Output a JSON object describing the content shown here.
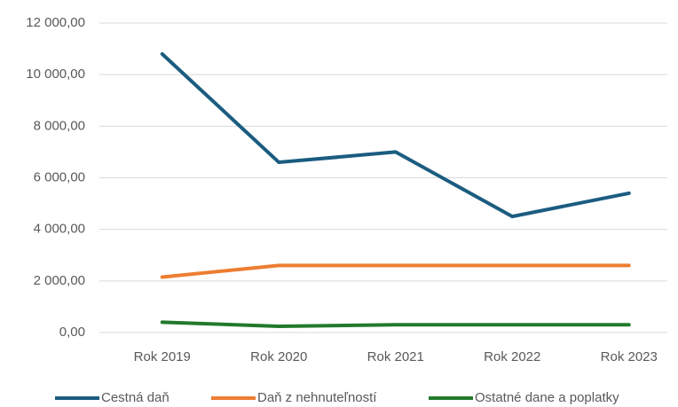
{
  "chart_data": {
    "type": "line",
    "categories": [
      "Rok 2019",
      "Rok 2020",
      "Rok 2021",
      "Rok 2022",
      "Rok 2023"
    ],
    "series": [
      {
        "name": "Cestná daň",
        "color": "#1b5c80",
        "values": [
          10800,
          6600,
          7000,
          4500,
          5400
        ]
      },
      {
        "name": "Daň z nehnuteľností",
        "color": "#ed7d31",
        "values": [
          2150,
          2600,
          2600,
          2600,
          2600
        ]
      },
      {
        "name": "Ostatné dane a poplatky",
        "color": "#217a2b",
        "values": [
          400,
          240,
          300,
          300,
          300
        ]
      }
    ],
    "ylim": [
      0,
      12000
    ],
    "yticks": [
      {
        "value": 0,
        "label": "0,00"
      },
      {
        "value": 2000,
        "label": "2 000,00"
      },
      {
        "value": 4000,
        "label": "4 000,00"
      },
      {
        "value": 6000,
        "label": "6 000,00"
      },
      {
        "value": 8000,
        "label": "8 000,00"
      },
      {
        "value": 10000,
        "label": "10 000,00"
      },
      {
        "value": 12000,
        "label": "12 000,00"
      }
    ],
    "grid": true,
    "legend": "bottom"
  }
}
